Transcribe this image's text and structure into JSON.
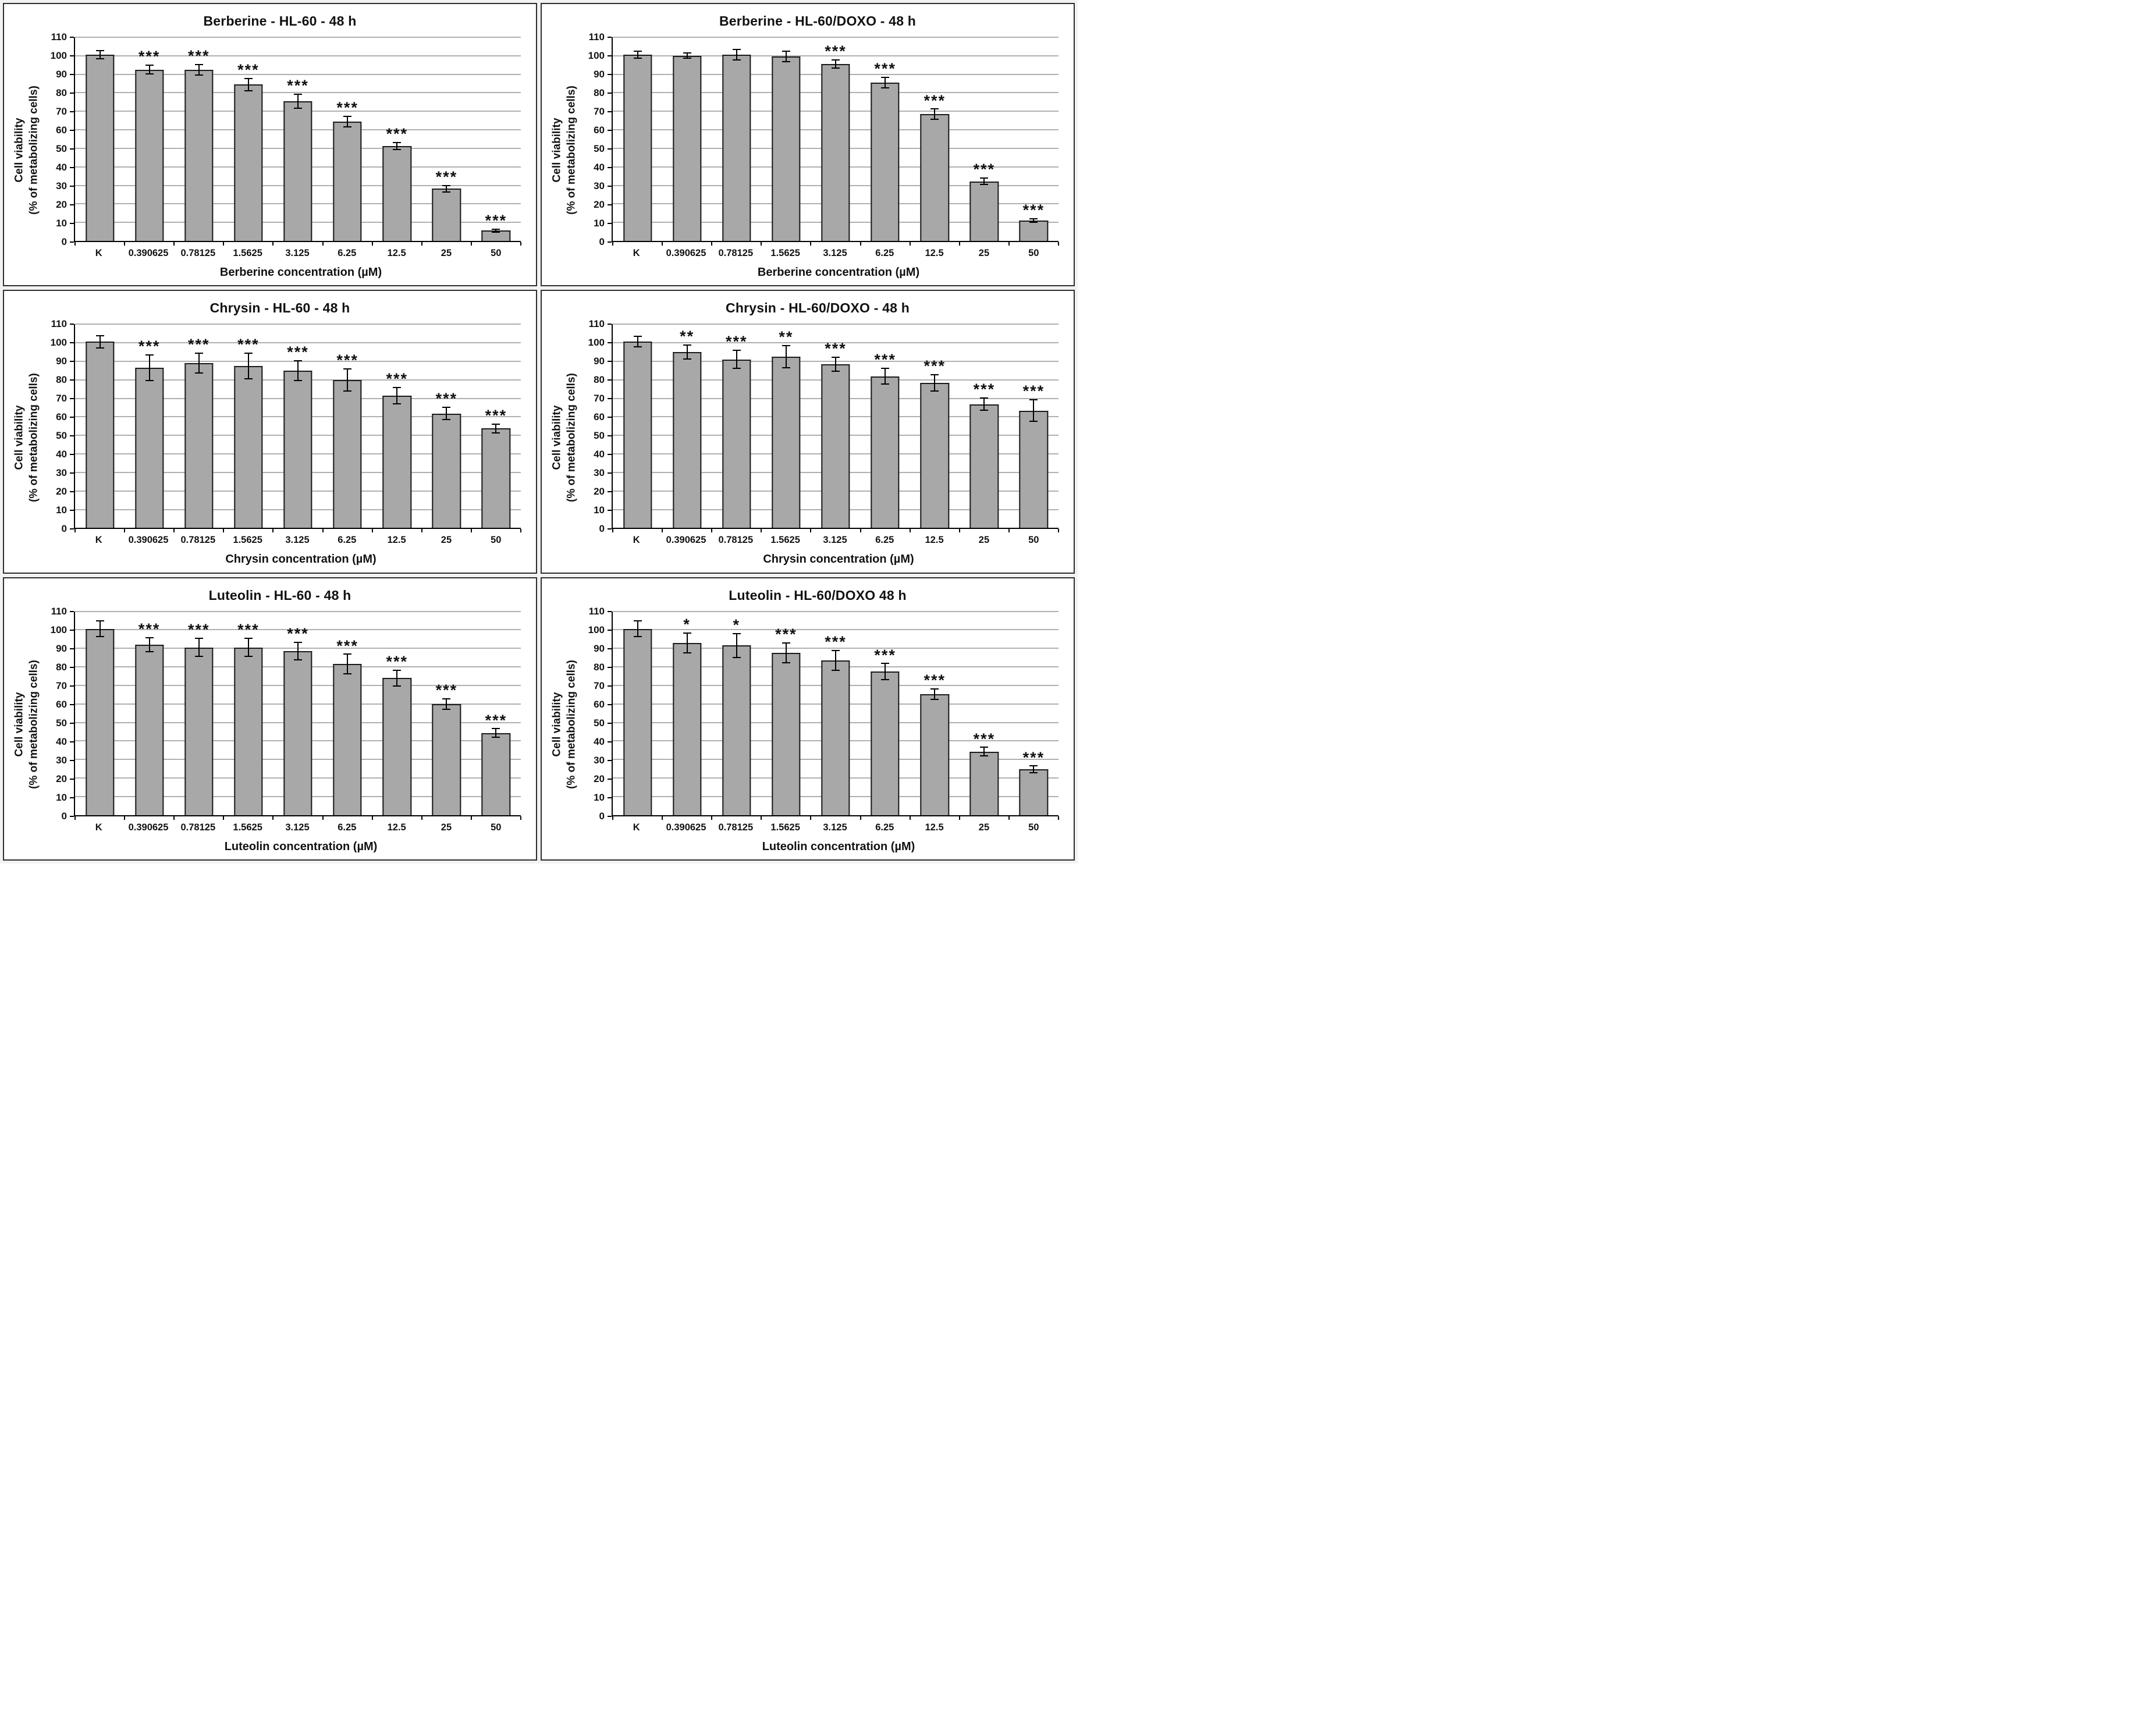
{
  "figure": {
    "background": "#ffffff",
    "panel_border_color": "#2e2e2e",
    "bar_fill": "#a8a8a8",
    "bar_border": "#1b1b1b",
    "gridline_color": "#b0b0b0",
    "axis_color": "#000000",
    "text_color": "#111111",
    "ylabel_line1": "Cell viability",
    "ylabel_line2": "(% of metabolizing cells)",
    "ylim": [
      0,
      110
    ],
    "ytick_step": 10,
    "yticks": [
      0,
      10,
      20,
      30,
      40,
      50,
      60,
      70,
      80,
      90,
      100,
      110
    ],
    "categories": [
      "K",
      "0.390625",
      "0.78125",
      "1.5625",
      "3.125",
      "6.25",
      "12.5",
      "25",
      "50"
    ],
    "grid": true,
    "legend": "none"
  },
  "chart_data": [
    {
      "type": "bar",
      "title": "Berberine - HL-60 - 48 h",
      "xlabel": "Berberine concentration (µM)",
      "ylabel": "Cell viability (% of metabolizing cells)",
      "categories": [
        "K",
        "0.390625",
        "0.78125",
        "1.5625",
        "3.125",
        "6.25",
        "12.5",
        "25",
        "50"
      ],
      "values": [
        100,
        92,
        92,
        84,
        75,
        64,
        51,
        28,
        5.5
      ],
      "errors": [
        2,
        2,
        2.5,
        3,
        3.5,
        2.5,
        1.5,
        1.5,
        0.5
      ],
      "significance": [
        "",
        "***",
        "***",
        "***",
        "***",
        "***",
        "***",
        "***",
        "***"
      ],
      "ylim": [
        0,
        110
      ]
    },
    {
      "type": "bar",
      "title": "Berberine - HL-60/DOXO - 48 h",
      "xlabel": "Berberine concentration (µM)",
      "ylabel": "Cell viability (% of metabolizing cells)",
      "categories": [
        "K",
        "0.390625",
        "0.78125",
        "1.5625",
        "3.125",
        "6.25",
        "12.5",
        "25",
        "50"
      ],
      "values": [
        100,
        99.5,
        100,
        99,
        95,
        85,
        68,
        32,
        11
      ],
      "errors": [
        1.5,
        1,
        2.5,
        2.5,
        2,
        2.5,
        2.5,
        1.5,
        0.7
      ],
      "significance": [
        "",
        "",
        "",
        "",
        "***",
        "***",
        "***",
        "***",
        "***"
      ],
      "ylim": [
        0,
        110
      ]
    },
    {
      "type": "bar",
      "title": "Chrysin - HL-60 - 48 h",
      "xlabel": "Chrysin concentration (µM)",
      "ylabel": "Cell viability (% of metabolizing cells)",
      "categories": [
        "K",
        "0.390625",
        "0.78125",
        "1.5625",
        "3.125",
        "6.25",
        "12.5",
        "25",
        "50"
      ],
      "values": [
        100,
        86,
        88.5,
        87,
        84.5,
        79.5,
        71,
        61.5,
        53.5
      ],
      "errors": [
        3,
        6.5,
        5,
        6.5,
        5,
        5.5,
        4,
        3,
        2
      ],
      "significance": [
        "",
        "***",
        "***",
        "***",
        "***",
        "***",
        "***",
        "***",
        "***"
      ],
      "ylim": [
        0,
        110
      ]
    },
    {
      "type": "bar",
      "title": "Chrysin - HL-60/DOXO - 48 h",
      "xlabel": "Chrysin concentration (µM)",
      "ylabel": "Cell viability (% of metabolizing cells)",
      "categories": [
        "K",
        "0.390625",
        "0.78125",
        "1.5625",
        "3.125",
        "6.25",
        "12.5",
        "25",
        "50"
      ],
      "values": [
        100,
        94.5,
        90.5,
        92,
        88,
        81.5,
        78,
        66.5,
        63
      ],
      "errors": [
        2.5,
        3.5,
        4.5,
        5.5,
        3.5,
        4,
        4,
        3,
        5.5
      ],
      "significance": [
        "",
        "**",
        "***",
        "**",
        "***",
        "***",
        "***",
        "***",
        "***"
      ],
      "ylim": [
        0,
        110
      ]
    },
    {
      "type": "bar",
      "title": "Luteolin - HL-60 - 48 h",
      "xlabel": "Luteolin concentration (µM)",
      "ylabel": "Cell viability (% of metabolizing cells)",
      "categories": [
        "K",
        "0.390625",
        "0.78125",
        "1.5625",
        "3.125",
        "6.25",
        "12.5",
        "25",
        "50"
      ],
      "values": [
        100,
        91.5,
        90,
        90,
        88,
        81,
        73.5,
        59.5,
        44
      ],
      "errors": [
        4,
        3.5,
        4.5,
        4.5,
        4.5,
        5,
        4,
        2.5,
        2
      ],
      "significance": [
        "",
        "***",
        "***",
        "***",
        "***",
        "***",
        "***",
        "***",
        "***"
      ],
      "ylim": [
        0,
        110
      ]
    },
    {
      "type": "bar",
      "title": "Luteolin - HL-60/DOXO 48 h",
      "xlabel": "Luteolin concentration (µM)",
      "ylabel": "Cell viability (% of metabolizing cells)",
      "categories": [
        "K",
        "0.390625",
        "0.78125",
        "1.5625",
        "3.125",
        "6.25",
        "12.5",
        "25",
        "50"
      ],
      "values": [
        100,
        92.5,
        91,
        87,
        83,
        77,
        65,
        34,
        24.5
      ],
      "errors": [
        4,
        5,
        6,
        5,
        5,
        4,
        2.5,
        2,
        1.5
      ],
      "significance": [
        "",
        "*",
        "*",
        "***",
        "***",
        "***",
        "***",
        "***",
        "***"
      ],
      "ylim": [
        0,
        110
      ]
    }
  ]
}
